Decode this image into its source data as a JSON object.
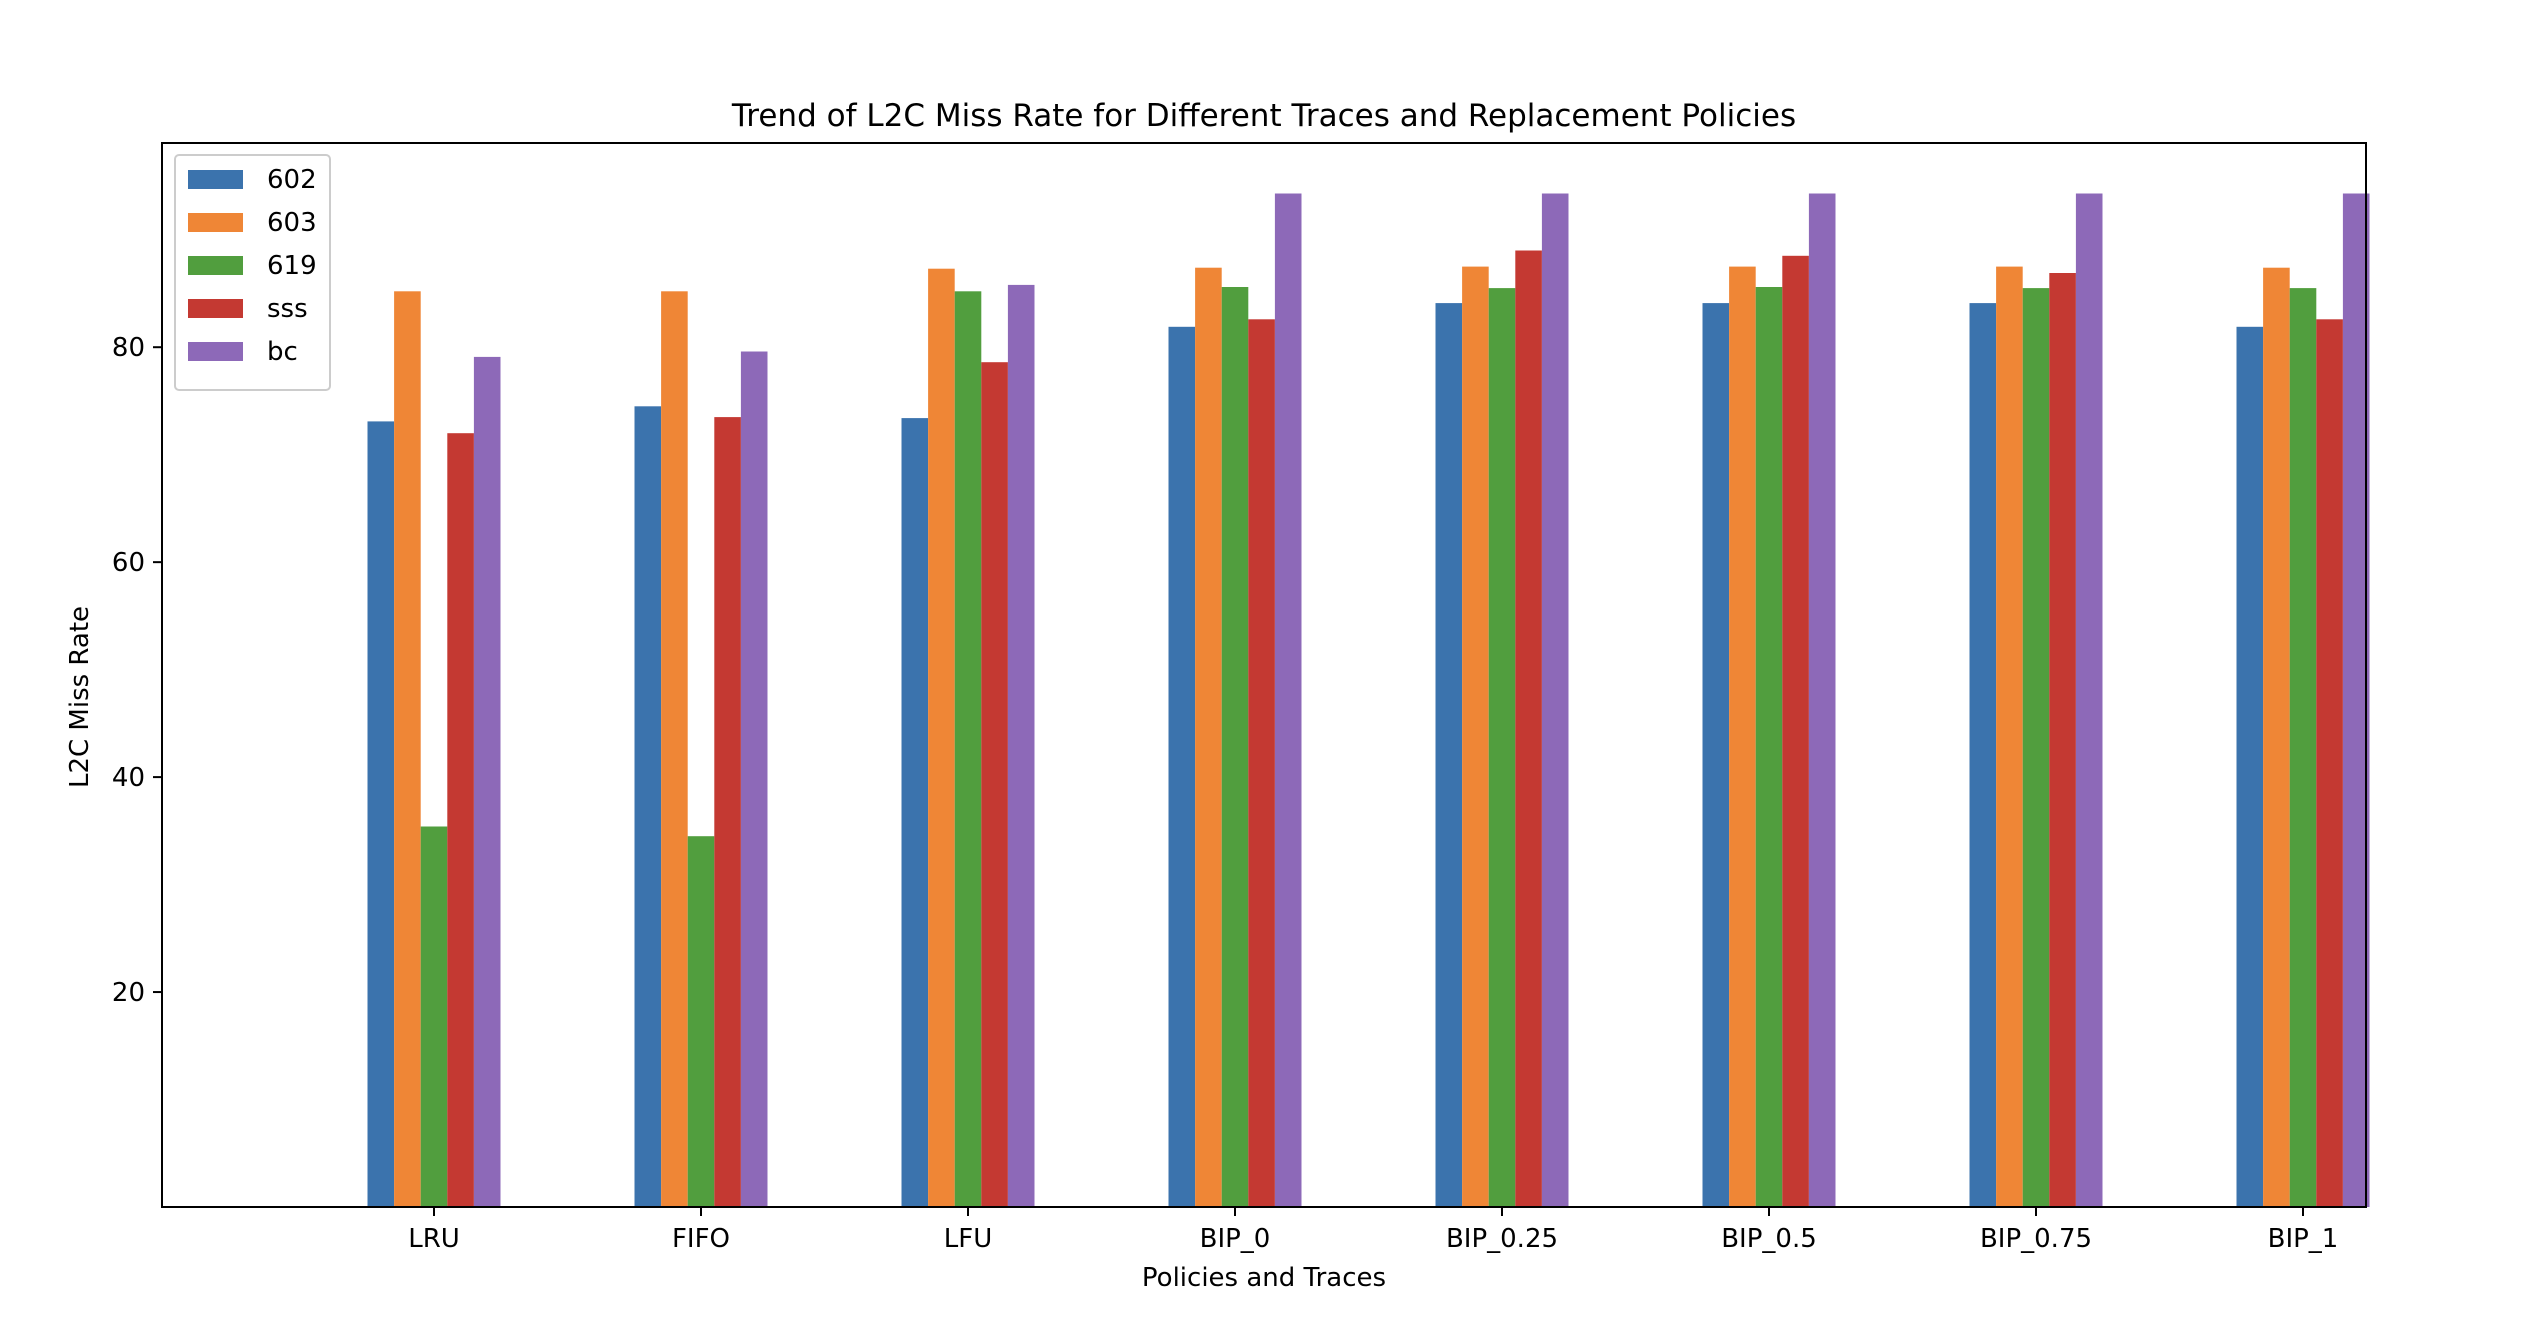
{
  "chart_data": {
    "type": "bar",
    "title": "Trend of L2C Miss Rate for Different Traces and Replacement Policies",
    "xlabel": "Policies and Traces",
    "ylabel": "L2C Miss Rate",
    "categories": [
      "LRU",
      "FIFO",
      "LFU",
      "BIP_0",
      "BIP_0.25",
      "BIP_0.5",
      "BIP_0.75",
      "BIP_1"
    ],
    "ylim": [
      0,
      99
    ],
    "yticks": [
      20,
      40,
      60,
      80
    ],
    "grid": false,
    "legend_position": "top-left",
    "series": [
      {
        "name": "602",
        "color": "#3b73ad",
        "values": [
          73.1,
          74.5,
          73.4,
          81.9,
          84.1,
          84.1,
          84.1,
          81.9
        ]
      },
      {
        "name": "603",
        "color": "#ef8636",
        "values": [
          85.2,
          85.2,
          87.3,
          87.4,
          87.5,
          87.5,
          87.5,
          87.4
        ]
      },
      {
        "name": "619",
        "color": "#519e3e",
        "values": [
          35.4,
          34.5,
          85.2,
          85.6,
          85.5,
          85.6,
          85.5,
          85.5
        ]
      },
      {
        "name": "sss",
        "color": "#c43932",
        "values": [
          72.0,
          73.5,
          78.6,
          82.6,
          89.0,
          88.5,
          86.9,
          82.6
        ]
      },
      {
        "name": "bc",
        "color": "#8d69b8",
        "values": [
          79.1,
          79.6,
          85.8,
          94.3,
          94.3,
          94.3,
          94.3,
          94.3
        ]
      }
    ]
  }
}
